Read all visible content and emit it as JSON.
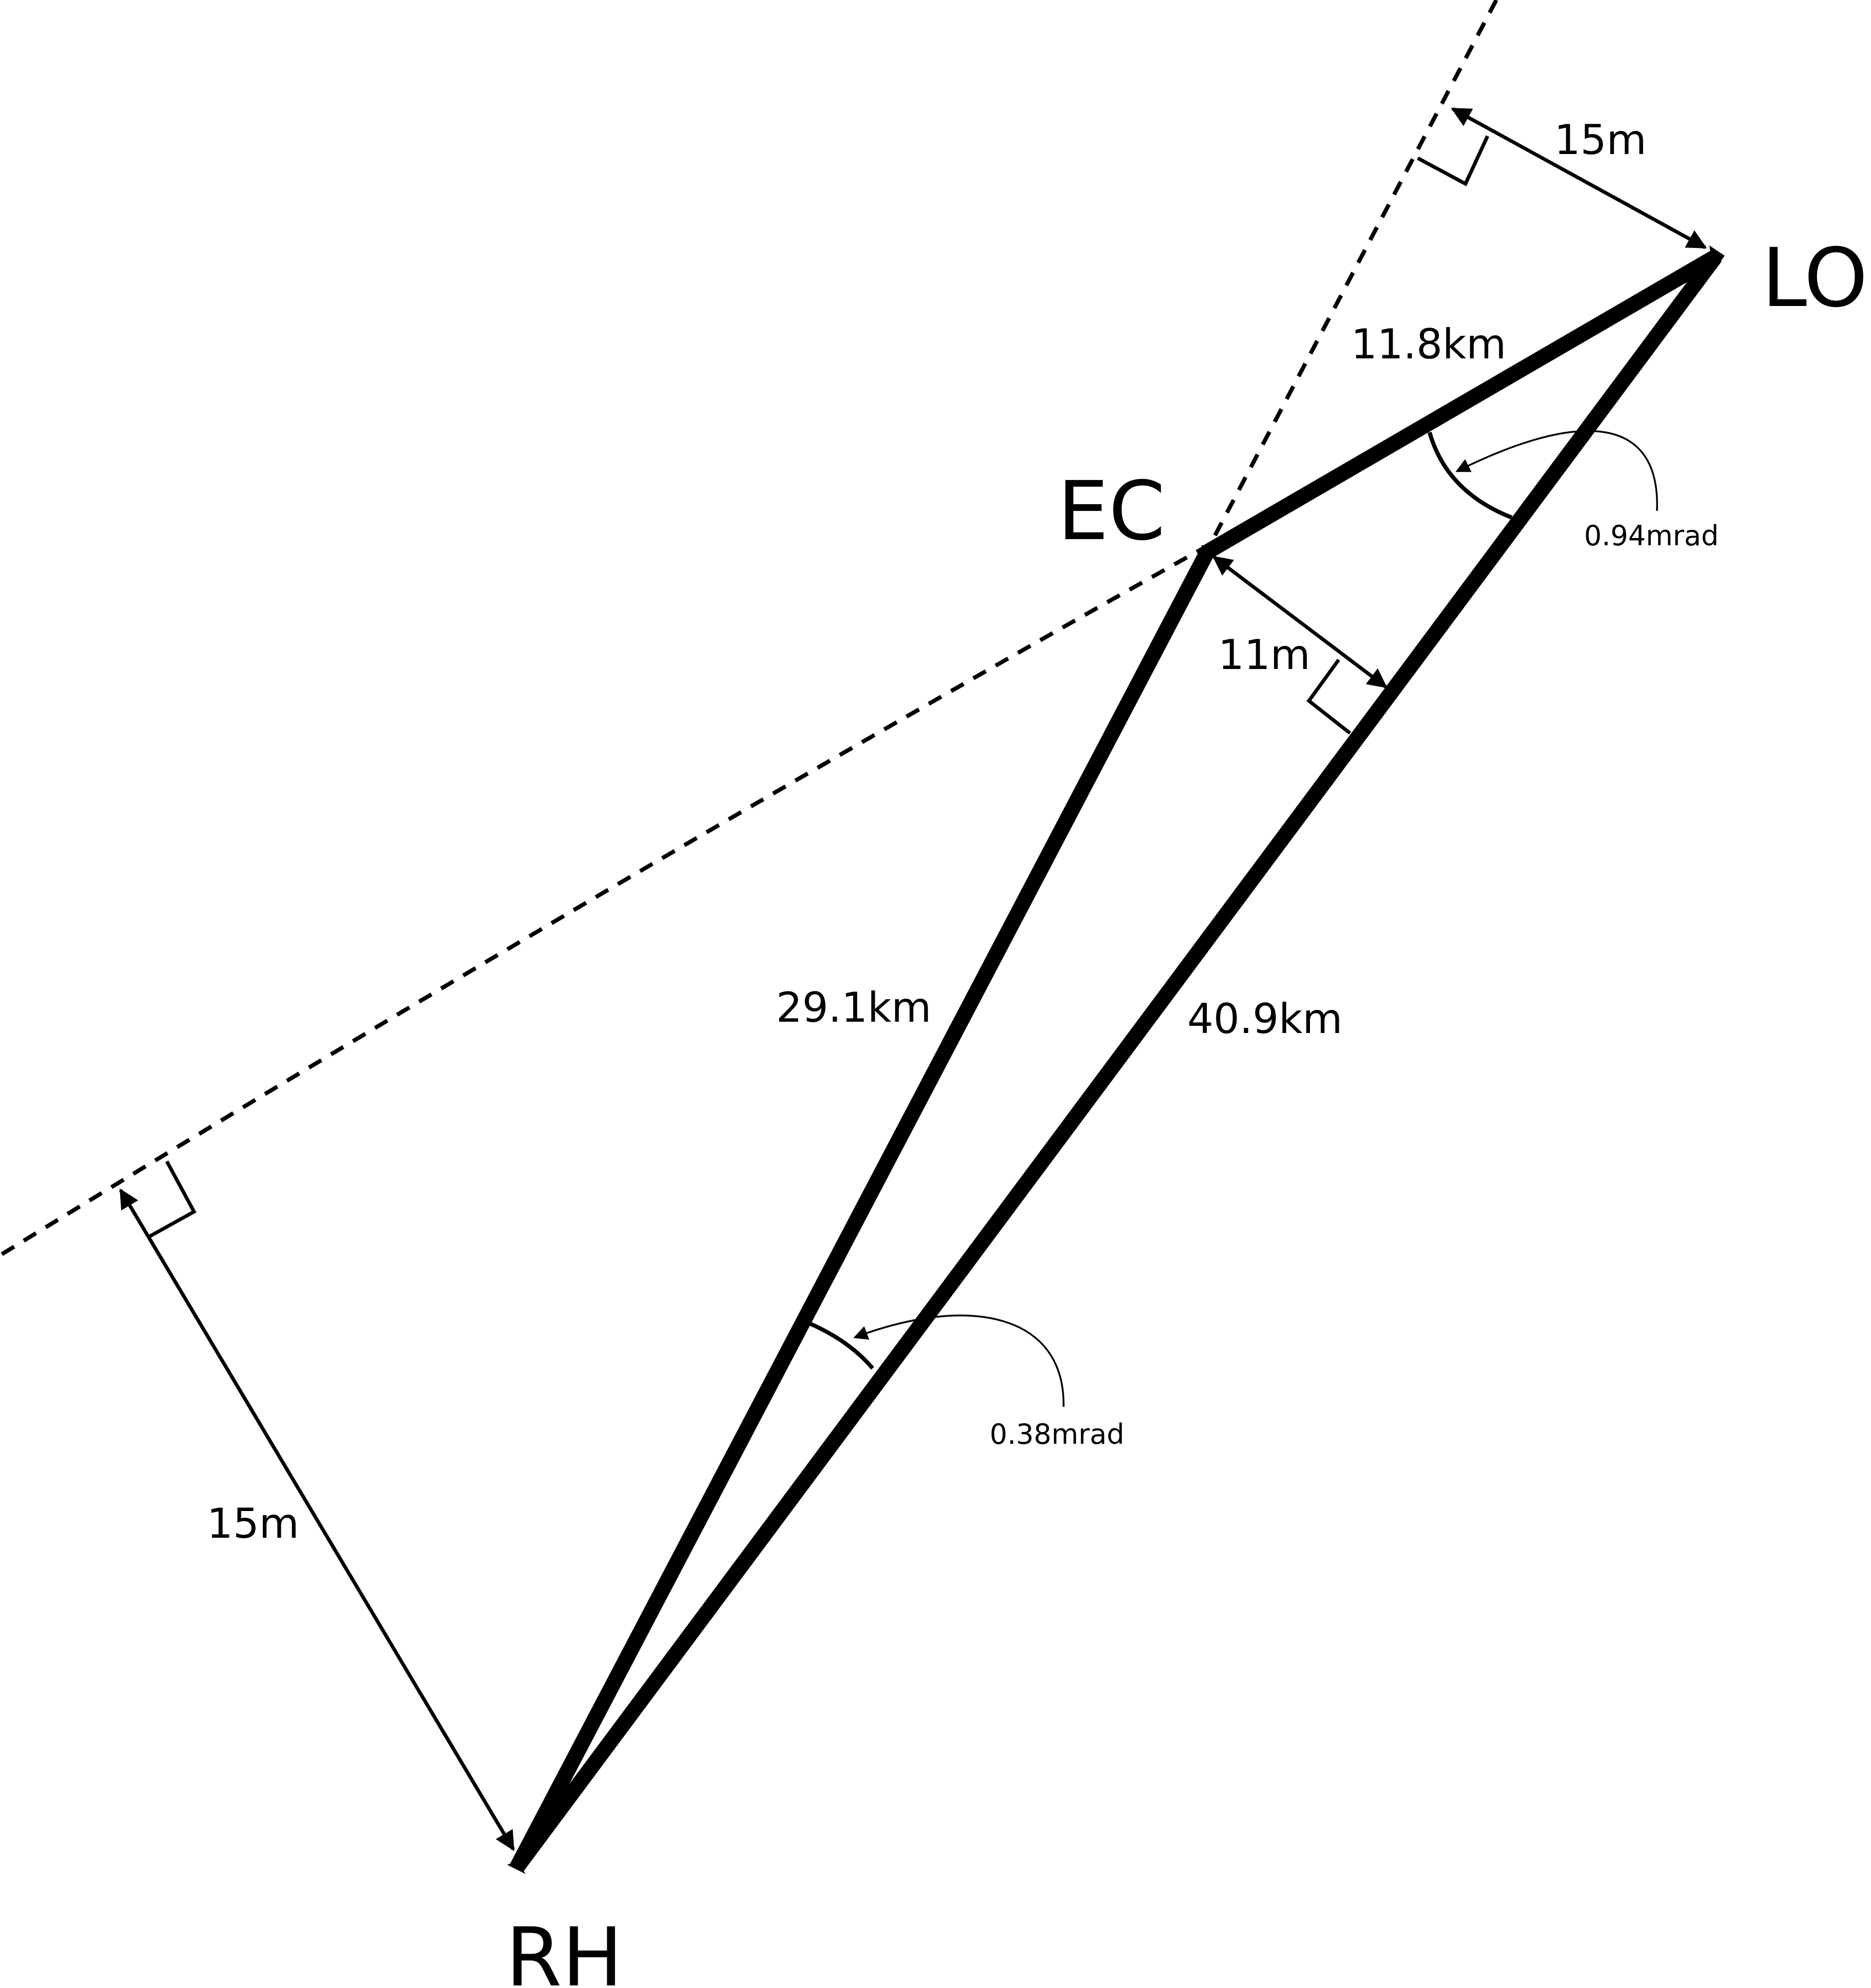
{
  "points": {
    "LO": "LO",
    "EC": "EC",
    "RH": "RH"
  },
  "distances": {
    "lo_ec": "11.8km",
    "ec_rh": "29.1km",
    "lo_rh": "40.9km"
  },
  "offsets": {
    "lo_to_horizon": "15m",
    "ec_to_sightline": "11m",
    "rh_to_horizon": "15m"
  },
  "angles": {
    "at_lo": "0.94mrad",
    "at_rh": "0.38mrad"
  },
  "colors": {
    "ink": "#000000",
    "background": "#ffffff"
  }
}
